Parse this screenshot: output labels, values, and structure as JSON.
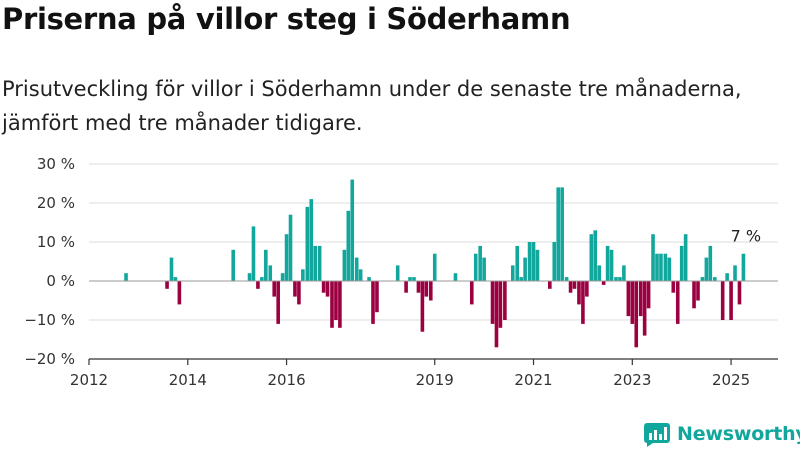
{
  "title": "Priserna på villor steg i Söderhamn",
  "subtitle": "Prisutveckling för villor i Söderhamn under de senaste tre månaderna, jämfört med tre månader tidigare.",
  "brand": {
    "name": "Newsworthy",
    "logo_icon": "newsworthy-logo-icon"
  },
  "colors": {
    "positive": "#12a79d",
    "negative": "#9b0040",
    "grid": "#dcdcdc",
    "axis": "#333333"
  },
  "chart_data": {
    "type": "bar",
    "ylim": [
      -20,
      30
    ],
    "y_ticks": [
      {
        "value": 30,
        "label": "30 %"
      },
      {
        "value": 20,
        "label": "20 %"
      },
      {
        "value": 10,
        "label": "10 %"
      },
      {
        "value": 0,
        "label": "0 %"
      },
      {
        "value": -10,
        "label": "−10 %"
      },
      {
        "value": -20,
        "label": "−20 %"
      }
    ],
    "x_ticks": [
      {
        "value": 2012.0,
        "label": "2012"
      },
      {
        "value": 2014.0,
        "label": "2014"
      },
      {
        "value": 2016.0,
        "label": "2016"
      },
      {
        "value": 2019.0,
        "label": "2019"
      },
      {
        "value": 2021.0,
        "label": "2021"
      },
      {
        "value": 2023.0,
        "label": "2023"
      },
      {
        "value": 2025.0,
        "label": "2025"
      }
    ],
    "xlim": [
      2012.0,
      2025.95
    ],
    "grid": "horizontal",
    "annotation": {
      "text": "7 %",
      "x": 2025.3,
      "y": 7
    },
    "x": [
      2012.75,
      2013.58,
      2013.67,
      2013.75,
      2013.83,
      2014.92,
      2015.25,
      2015.33,
      2015.42,
      2015.5,
      2015.58,
      2015.67,
      2015.75,
      2015.83,
      2015.92,
      2016.0,
      2016.08,
      2016.17,
      2016.25,
      2016.33,
      2016.42,
      2016.5,
      2016.58,
      2016.67,
      2016.75,
      2016.83,
      2016.92,
      2017.0,
      2017.08,
      2017.17,
      2017.25,
      2017.33,
      2017.42,
      2017.5,
      2017.58,
      2017.67,
      2017.75,
      2017.83,
      2017.92,
      2018.0,
      2018.25,
      2018.42,
      2018.5,
      2018.58,
      2018.67,
      2018.75,
      2018.83,
      2018.92,
      2019.0,
      2019.42,
      2019.5,
      2019.58,
      2019.67,
      2019.75,
      2019.83,
      2019.92,
      2020.0,
      2020.17,
      2020.25,
      2020.33,
      2020.42,
      2020.5,
      2020.58,
      2020.67,
      2020.75,
      2020.83,
      2020.92,
      2021.0,
      2021.08,
      2021.17,
      2021.25,
      2021.33,
      2021.42,
      2021.5,
      2021.58,
      2021.67,
      2021.75,
      2021.83,
      2021.92,
      2022.0,
      2022.08,
      2022.17,
      2022.25,
      2022.33,
      2022.42,
      2022.5,
      2022.58,
      2022.67,
      2022.75,
      2022.83,
      2022.92,
      2023.0,
      2023.08,
      2023.17,
      2023.25,
      2023.33,
      2023.42,
      2023.5,
      2023.58,
      2023.67,
      2023.75,
      2023.83,
      2023.92,
      2024.0,
      2024.08,
      2024.17,
      2024.25,
      2024.33,
      2024.42,
      2024.5,
      2024.58,
      2024.67,
      2024.83,
      2024.92,
      2025.0,
      2025.08,
      2025.17,
      2025.25
    ],
    "values": [
      2,
      -2,
      6,
      1,
      -6,
      8,
      2,
      14,
      -2,
      1,
      8,
      4,
      -4,
      -11,
      2,
      12,
      17,
      -4,
      -6,
      3,
      19,
      21,
      9,
      9,
      -3,
      -4,
      -12,
      -10,
      -12,
      8,
      18,
      26,
      6,
      3,
      0,
      1,
      -11,
      -8,
      0,
      0,
      4,
      -3,
      1,
      1,
      -3,
      -13,
      -4,
      -5,
      7,
      2,
      0,
      0,
      0,
      -6,
      7,
      9,
      6,
      -11,
      -17,
      -12,
      -10,
      0,
      4,
      9,
      1,
      6,
      10,
      10,
      8,
      0,
      0,
      -2,
      10,
      24,
      24,
      1,
      -3,
      -2,
      -6,
      -11,
      -4,
      12,
      13,
      4,
      -1,
      9,
      8,
      1,
      1,
      4,
      -9,
      -11,
      -17,
      -9,
      -14,
      -7,
      12,
      7,
      7,
      7,
      6,
      -3,
      -11,
      9,
      12,
      0,
      -7,
      -5,
      1,
      6,
      9,
      1,
      -10,
      2,
      -10,
      4,
      -6,
      7
    ]
  }
}
